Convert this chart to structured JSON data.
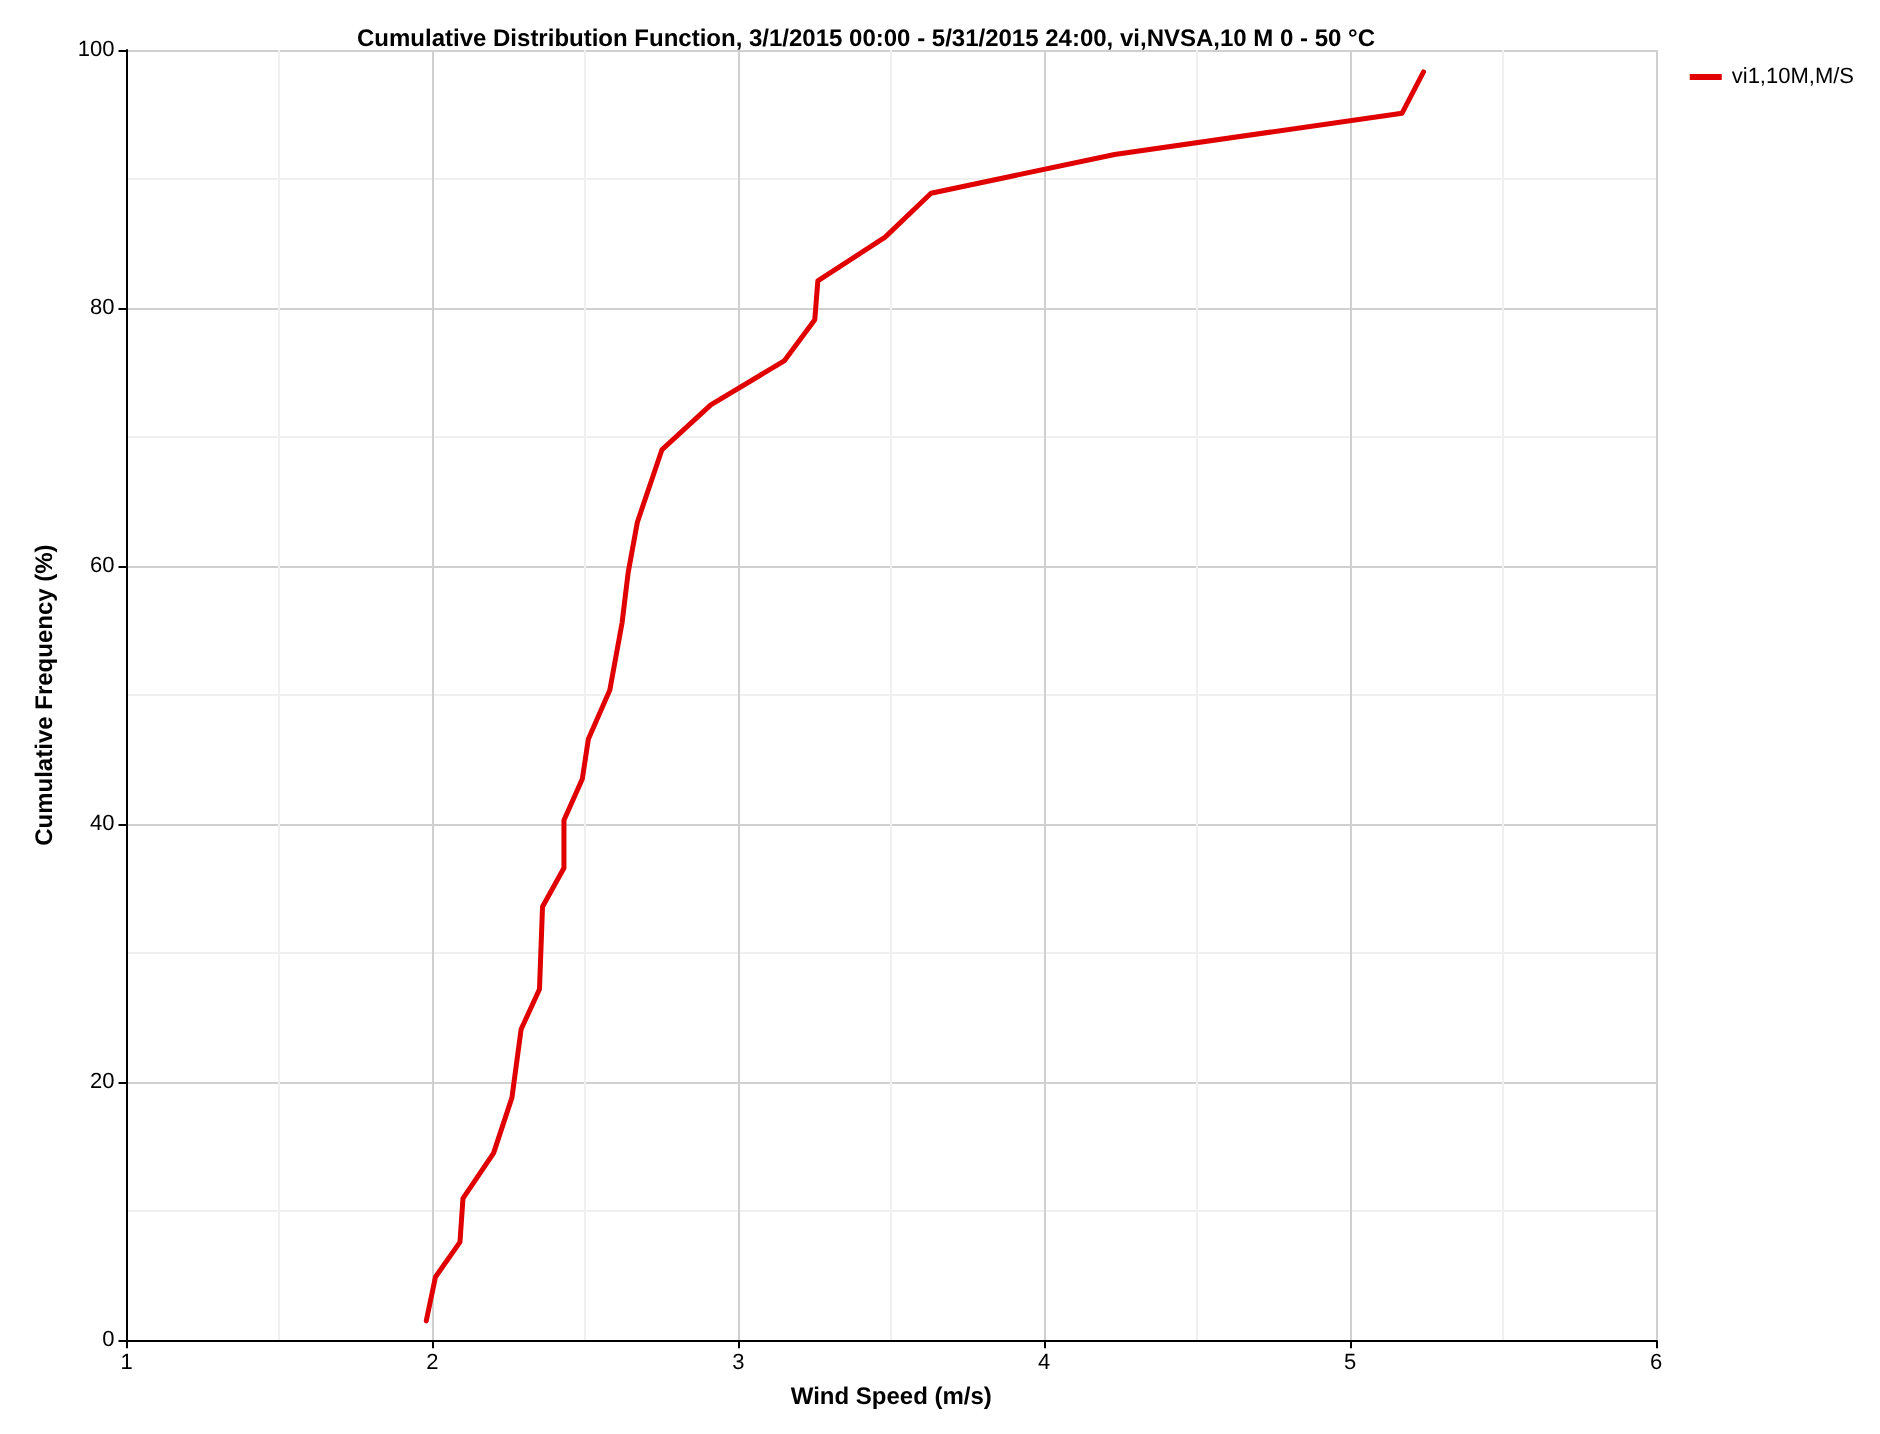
{
  "chart_data": {
    "type": "line",
    "title": "Cumulative Distribution Function, 3/1/2015 00:00 - 5/31/2015 24:00, vi,NVSA,10 M 0 - 50 °C",
    "xlabel": "Wind Speed (m/s)",
    "ylabel": "Cumulative Frequency (%)",
    "xlim": [
      1,
      6
    ],
    "xticks": [
      1,
      2,
      3,
      4,
      5,
      6
    ],
    "ylim": [
      0,
      100
    ],
    "yticks": [
      0,
      20,
      40,
      60,
      80,
      100
    ],
    "grid": true,
    "legend": "top right",
    "marker": "none",
    "line_style": "solid",
    "series": [
      {
        "name": "vi1,10M,M/S",
        "color": "#e00000",
        "x": [
          1.98,
          2.01,
          2.09,
          2.1,
          2.2,
          2.26,
          2.29,
          2.35,
          2.36,
          2.43,
          2.43,
          2.49,
          2.51,
          2.58,
          2.62,
          2.64,
          2.67,
          2.75,
          2.91,
          3.15,
          3.25,
          3.26,
          3.48,
          3.63,
          4.23,
          5.17,
          5.24
        ],
        "values": [
          1.5,
          4.9,
          7.6,
          11,
          14.5,
          18.8,
          24.1,
          27.2,
          33.6,
          36.6,
          40.3,
          43.5,
          46.6,
          50.4,
          55.6,
          59.5,
          63.4,
          69,
          72.5,
          75.9,
          79.1,
          82.1,
          85.5,
          88.9,
          91.9,
          95.1,
          98.3
        ]
      }
    ]
  }
}
